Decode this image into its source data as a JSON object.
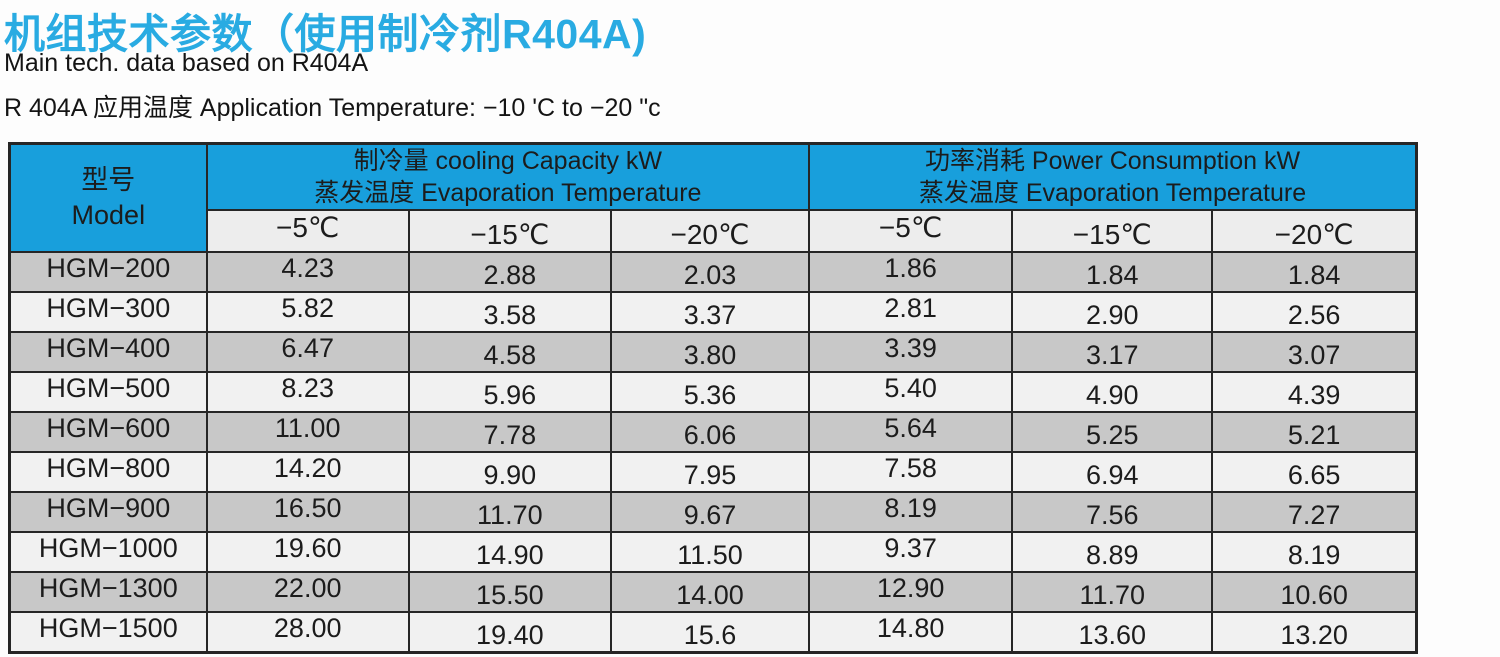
{
  "page": {
    "title": "机组技术参数（使用制冷剂R404A)",
    "subtitle": "Main tech. data based on R404A",
    "application_line": "R 404A 应用温度 Application Temperature: −10 'C to −20 \"c"
  },
  "table": {
    "model_header": {
      "zh": "型号",
      "en": "Model"
    },
    "groups": [
      {
        "line1": "制冷量 cooling Capacity kW",
        "line2": "蒸发温度 Evaporation Temperature"
      },
      {
        "line1": "功率消耗 Power Consumption kW",
        "line2": "蒸发温度 Evaporation Temperature"
      }
    ],
    "temp_columns": [
      "−5℃",
      "−15℃",
      "−20℃"
    ],
    "rows": [
      {
        "model": "HGM−200",
        "cooling": [
          "4.23",
          "2.88",
          "2.03"
        ],
        "power": [
          "1.86",
          "1.84",
          "1.84"
        ]
      },
      {
        "model": "HGM−300",
        "cooling": [
          "5.82",
          "3.58",
          "3.37"
        ],
        "power": [
          "2.81",
          "2.90",
          "2.56"
        ]
      },
      {
        "model": "HGM−400",
        "cooling": [
          "6.47",
          "4.58",
          "3.80"
        ],
        "power": [
          "3.39",
          "3.17",
          "3.07"
        ]
      },
      {
        "model": "HGM−500",
        "cooling": [
          "8.23",
          "5.96",
          "5.36"
        ],
        "power": [
          "5.40",
          "4.90",
          "4.39"
        ]
      },
      {
        "model": "HGM−600",
        "cooling": [
          "11.00",
          "7.78",
          "6.06"
        ],
        "power": [
          "5.64",
          "5.25",
          "5.21"
        ]
      },
      {
        "model": "HGM−800",
        "cooling": [
          "14.20",
          "9.90",
          "7.95"
        ],
        "power": [
          "7.58",
          "6.94",
          "6.65"
        ]
      },
      {
        "model": "HGM−900",
        "cooling": [
          "16.50",
          "11.70",
          "9.67"
        ],
        "power": [
          "8.19",
          "7.56",
          "7.27"
        ]
      },
      {
        "model": "HGM−1000",
        "cooling": [
          "19.60",
          "14.90",
          "11.50"
        ],
        "power": [
          "9.37",
          "8.89",
          "8.19"
        ]
      },
      {
        "model": "HGM−1300",
        "cooling": [
          "22.00",
          "15.50",
          "14.00"
        ],
        "power": [
          "12.90",
          "11.70",
          "10.60"
        ]
      },
      {
        "model": "HGM−1500",
        "cooling": [
          "28.00",
          "19.40",
          "15.6"
        ],
        "power": [
          "14.80",
          "13.60",
          "13.20"
        ]
      }
    ]
  },
  "colors": {
    "title_blue": "#29abe2",
    "header_blue": "#189fdc",
    "border_dark": "#262626",
    "row_dark": "#c8c8c8",
    "row_light": "#f1f1f1",
    "subhead_bg": "#ededed"
  }
}
